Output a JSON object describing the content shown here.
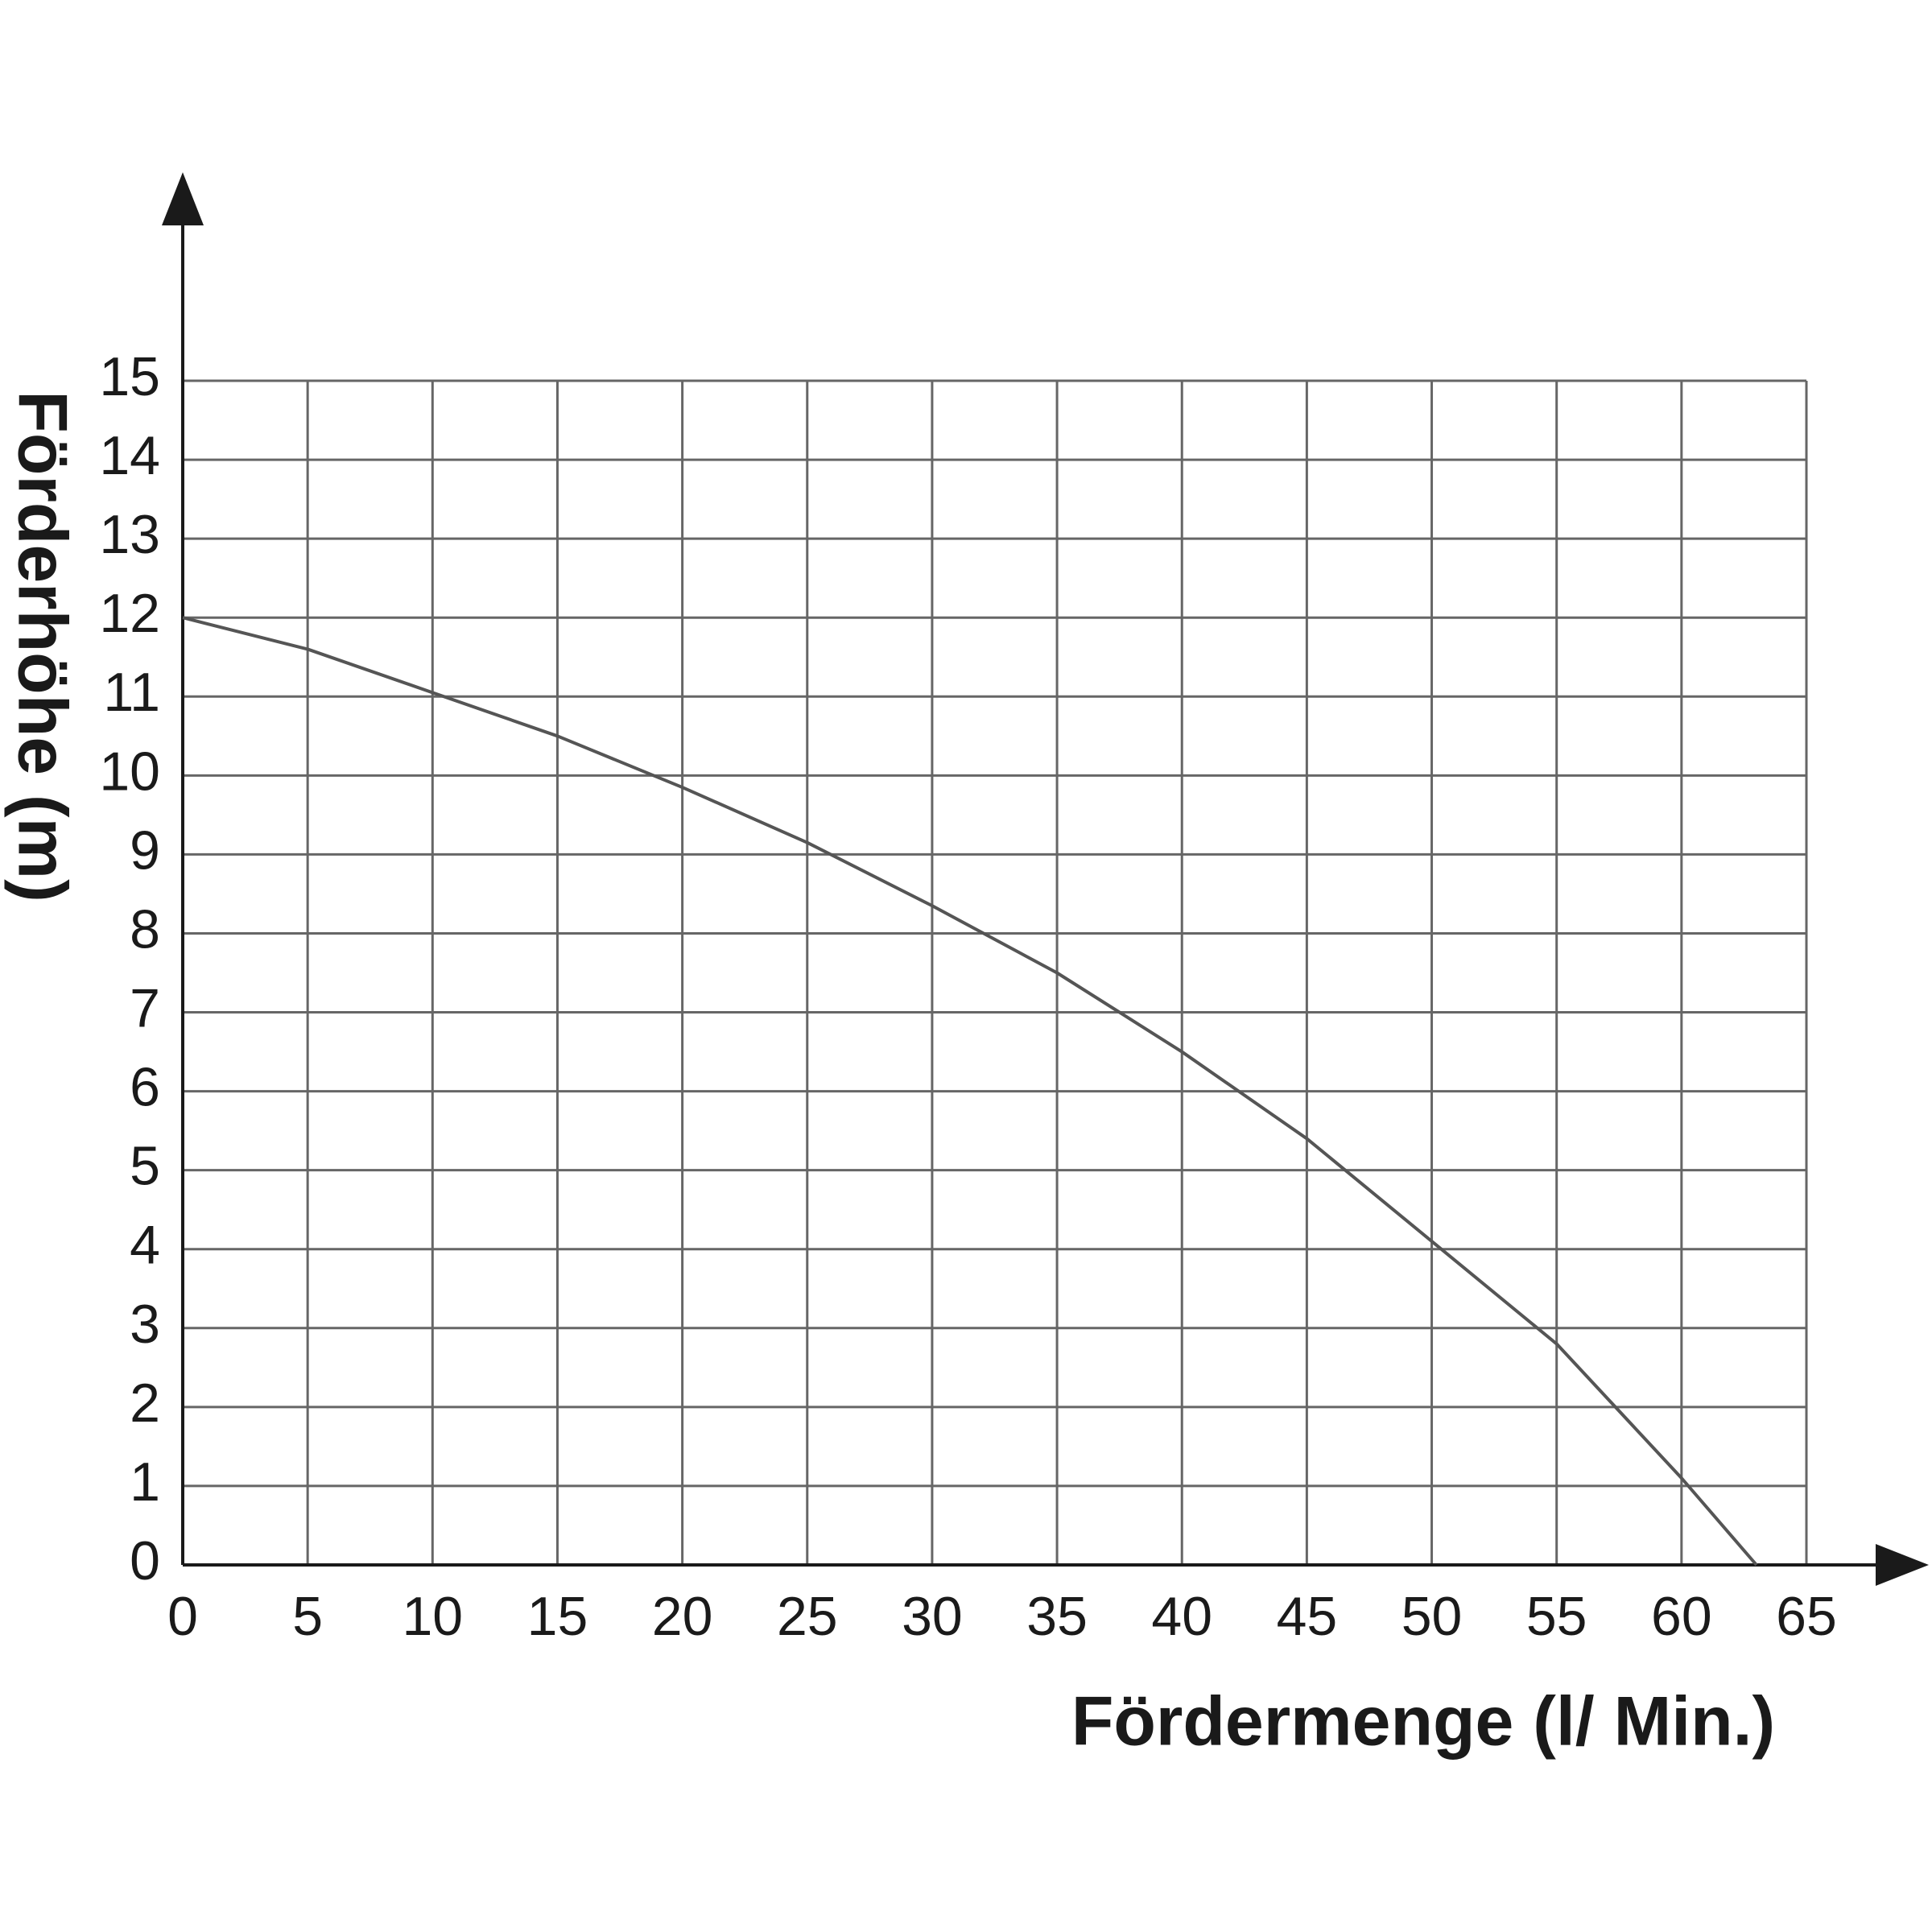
{
  "chart_data": {
    "type": "line",
    "x_label": "Fördermenge (l/ Min.)",
    "y_label": "Förderhöhe (m)",
    "x": [
      0,
      5,
      10,
      15,
      20,
      25,
      30,
      35,
      40,
      45,
      50,
      55,
      60,
      63
    ],
    "series": [
      {
        "color": "#555555",
        "values": [
          12,
          11.6,
          11.05,
          10.5,
          9.85,
          9.15,
          8.35,
          7.5,
          6.5,
          5.4,
          4.1,
          2.8,
          1.1,
          0
        ]
      }
    ],
    "xlim": [
      0,
      65
    ],
    "xticks": [
      0,
      5,
      10,
      15,
      20,
      25,
      30,
      35,
      40,
      45,
      50,
      55,
      60,
      65
    ],
    "ylim": [
      0,
      15
    ],
    "yticks": [
      0,
      1,
      2,
      3,
      4,
      5,
      6,
      7,
      8,
      9,
      10,
      11,
      12,
      13,
      14,
      15
    ],
    "grid": true
  }
}
